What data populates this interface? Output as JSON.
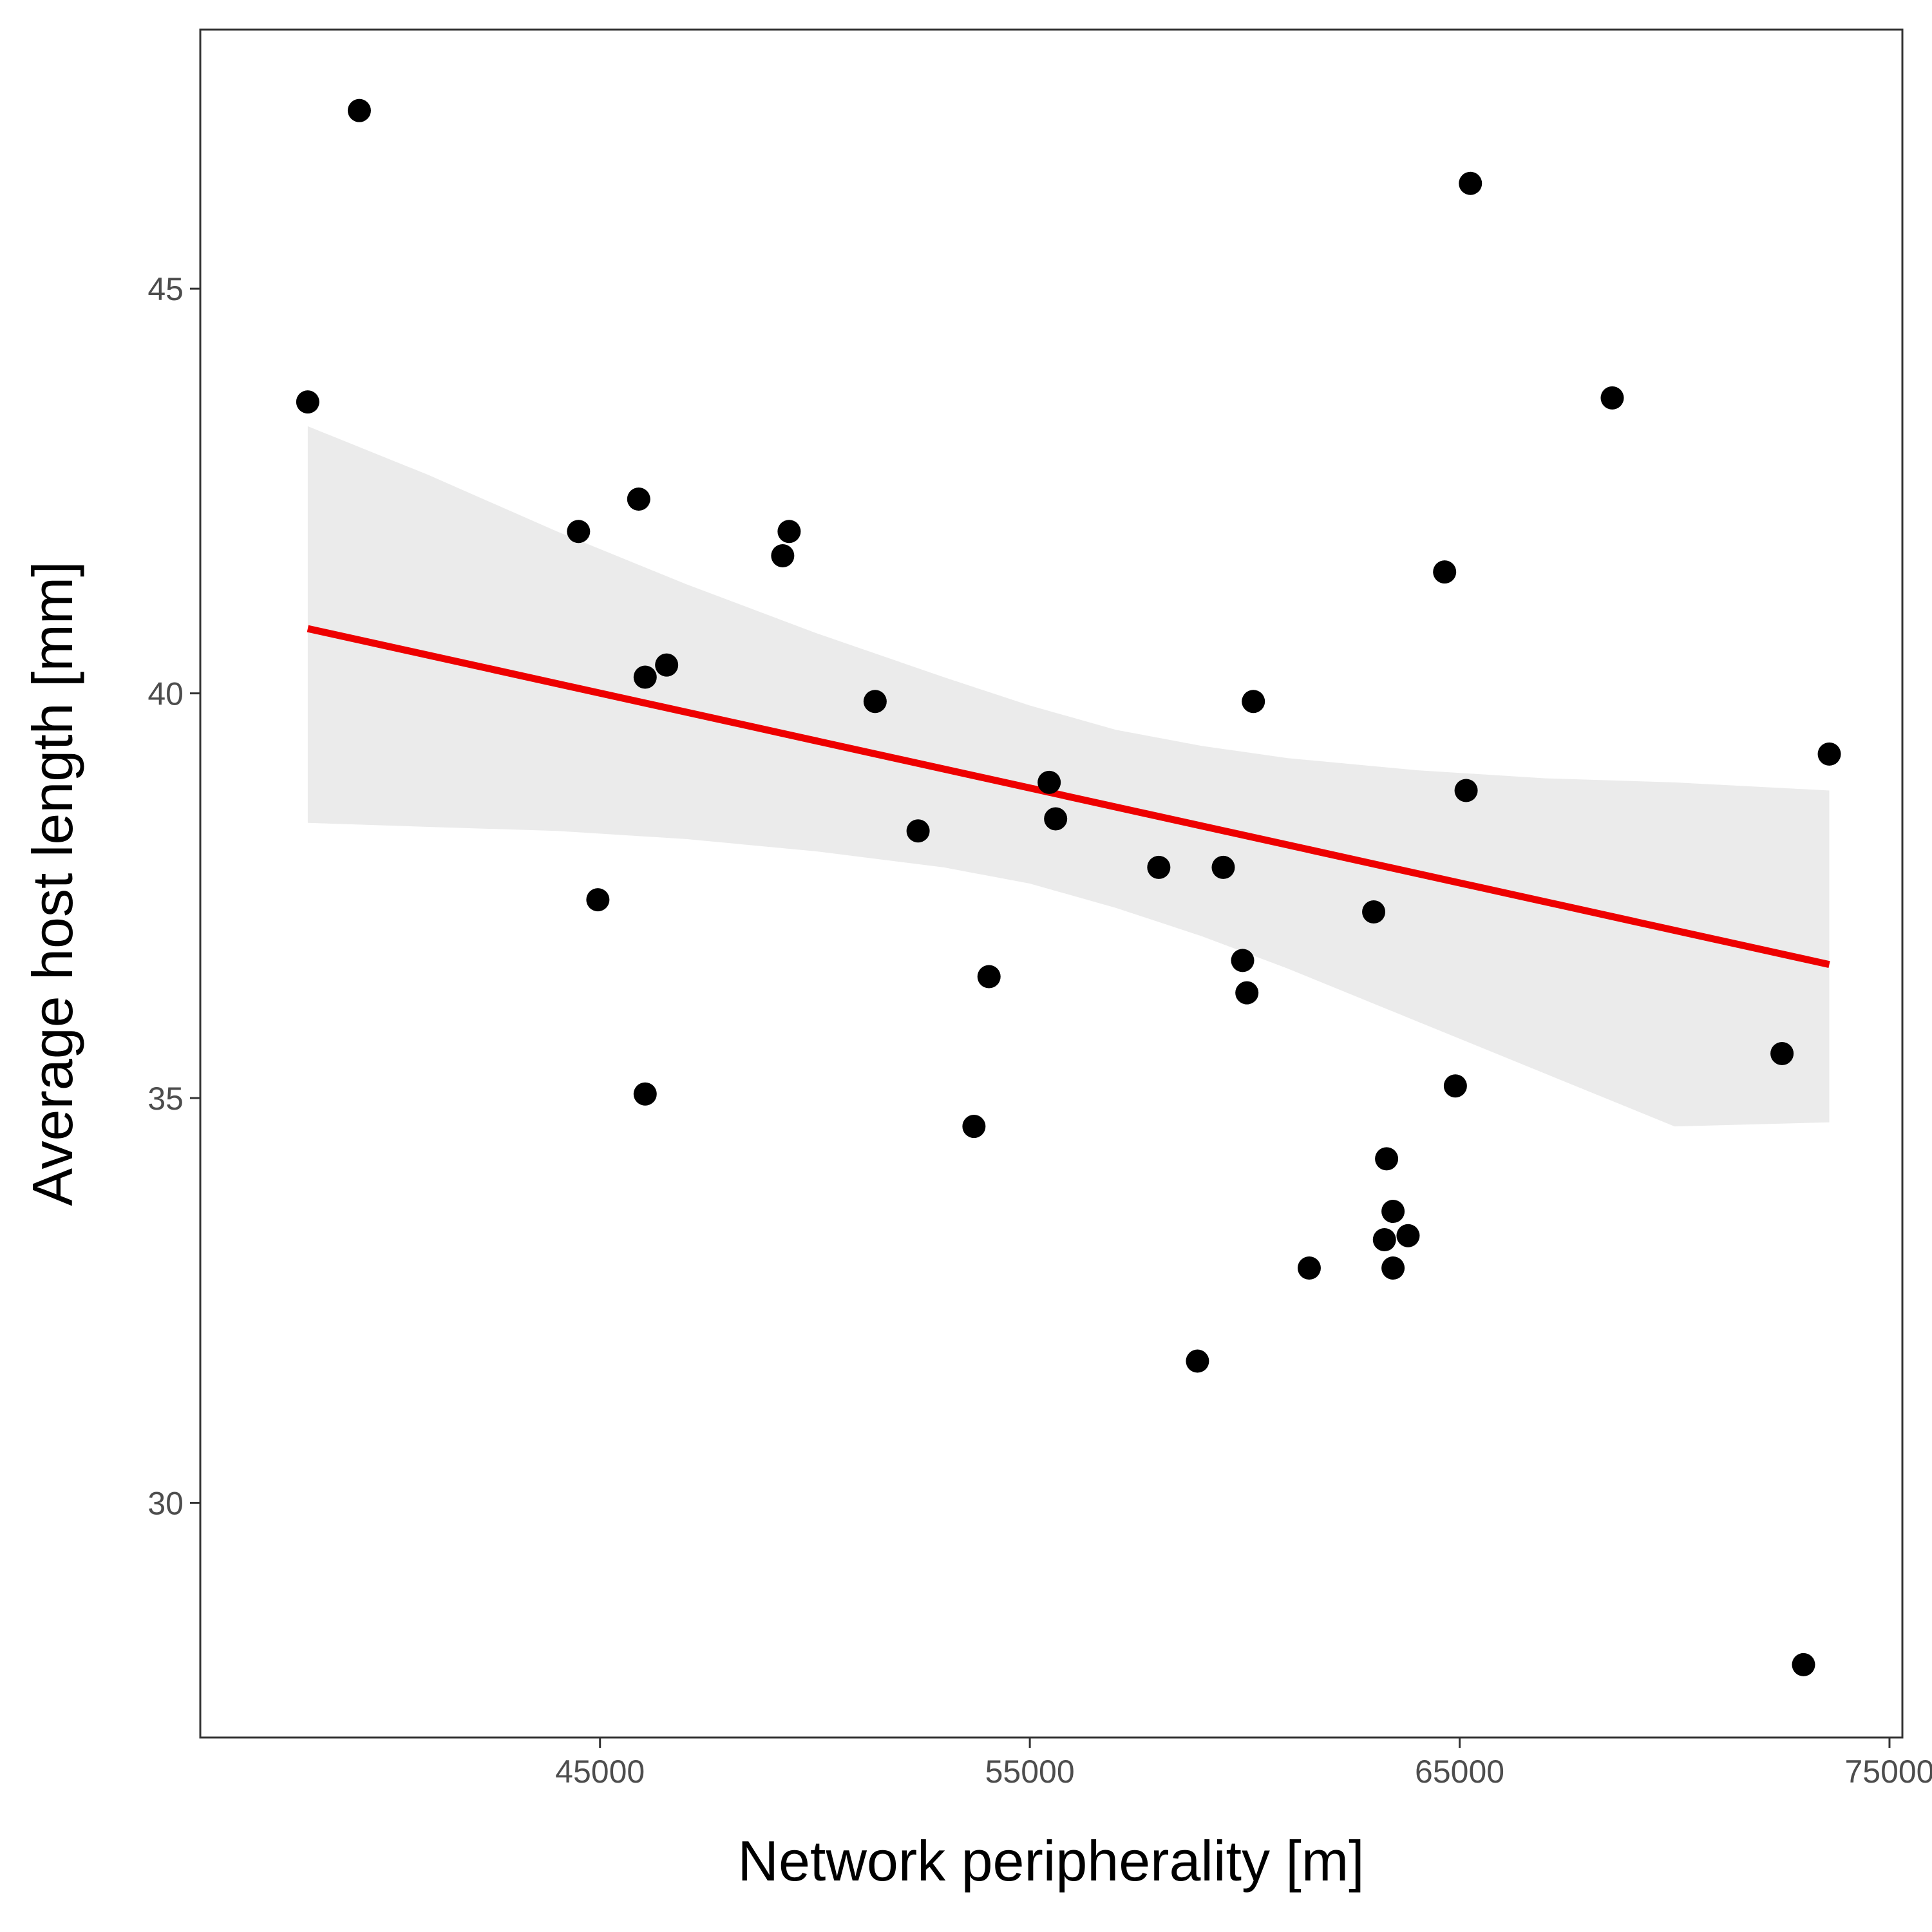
{
  "chart_data": {
    "type": "scatter",
    "title": "",
    "xlabel": "Network peripherality [m]",
    "ylabel": "Average host length [mm]",
    "xlim": [
      35700,
      75300
    ],
    "ylim": [
      27.1,
      48.2
    ],
    "x_ticks": [
      45000,
      55000,
      65000,
      75000
    ],
    "x_tick_labels": [
      "45000",
      "55000",
      "65000",
      "75000"
    ],
    "y_ticks": [
      30,
      35,
      40,
      45
    ],
    "y_tick_labels": [
      "30",
      "35",
      "40",
      "45"
    ],
    "grid": false,
    "legend": "none",
    "series": [
      {
        "kind": "points",
        "color": "#000000",
        "points": [
          {
            "x": 38200,
            "y": 43.6
          },
          {
            "x": 39400,
            "y": 47.2
          },
          {
            "x": 44500,
            "y": 42.0
          },
          {
            "x": 44950,
            "y": 37.45
          },
          {
            "x": 45900,
            "y": 42.4
          },
          {
            "x": 46050,
            "y": 40.2
          },
          {
            "x": 46050,
            "y": 35.05
          },
          {
            "x": 46550,
            "y": 40.35
          },
          {
            "x": 49250,
            "y": 41.7
          },
          {
            "x": 49400,
            "y": 42.0
          },
          {
            "x": 51400,
            "y": 39.9
          },
          {
            "x": 52400,
            "y": 38.3
          },
          {
            "x": 54050,
            "y": 36.5
          },
          {
            "x": 53700,
            "y": 34.65
          },
          {
            "x": 55450,
            "y": 38.9
          },
          {
            "x": 55600,
            "y": 38.45
          },
          {
            "x": 58000,
            "y": 37.85
          },
          {
            "x": 58900,
            "y": 31.75
          },
          {
            "x": 59500,
            "y": 37.85
          },
          {
            "x": 59950,
            "y": 36.7
          },
          {
            "x": 60050,
            "y": 36.3
          },
          {
            "x": 60200,
            "y": 39.9
          },
          {
            "x": 61500,
            "y": 32.9
          },
          {
            "x": 63000,
            "y": 37.3
          },
          {
            "x": 63250,
            "y": 33.25
          },
          {
            "x": 63300,
            "y": 34.25
          },
          {
            "x": 63450,
            "y": 33.6
          },
          {
            "x": 63450,
            "y": 32.9
          },
          {
            "x": 63800,
            "y": 33.3
          },
          {
            "x": 64650,
            "y": 41.5
          },
          {
            "x": 64900,
            "y": 35.15
          },
          {
            "x": 65150,
            "y": 38.8
          },
          {
            "x": 65250,
            "y": 46.3
          },
          {
            "x": 68550,
            "y": 43.65
          },
          {
            "x": 72500,
            "y": 35.55
          },
          {
            "x": 73000,
            "y": 28.0
          },
          {
            "x": 73600,
            "y": 39.25
          }
        ]
      },
      {
        "kind": "fit",
        "method": "linear",
        "color": "#ee0000",
        "points": [
          {
            "x": 38200,
            "y": 40.8
          },
          {
            "x": 73600,
            "y": 36.65
          }
        ]
      },
      {
        "kind": "confidence-band",
        "color": "#ebebeb",
        "x": [
          38200,
          41000,
          44000,
          47000,
          50000,
          53000,
          55000,
          57000,
          59000,
          61000,
          64000,
          67000,
          70000,
          73600
        ],
        "upper": [
          43.3,
          42.7,
          42.0,
          41.35,
          40.75,
          40.2,
          39.85,
          39.55,
          39.35,
          39.2,
          39.05,
          38.95,
          38.9,
          38.8
        ],
        "lower": [
          38.4,
          38.35,
          38.3,
          38.2,
          38.05,
          37.85,
          37.65,
          37.35,
          37.0,
          36.6,
          35.95,
          35.3,
          34.65,
          34.7
        ]
      }
    ]
  }
}
